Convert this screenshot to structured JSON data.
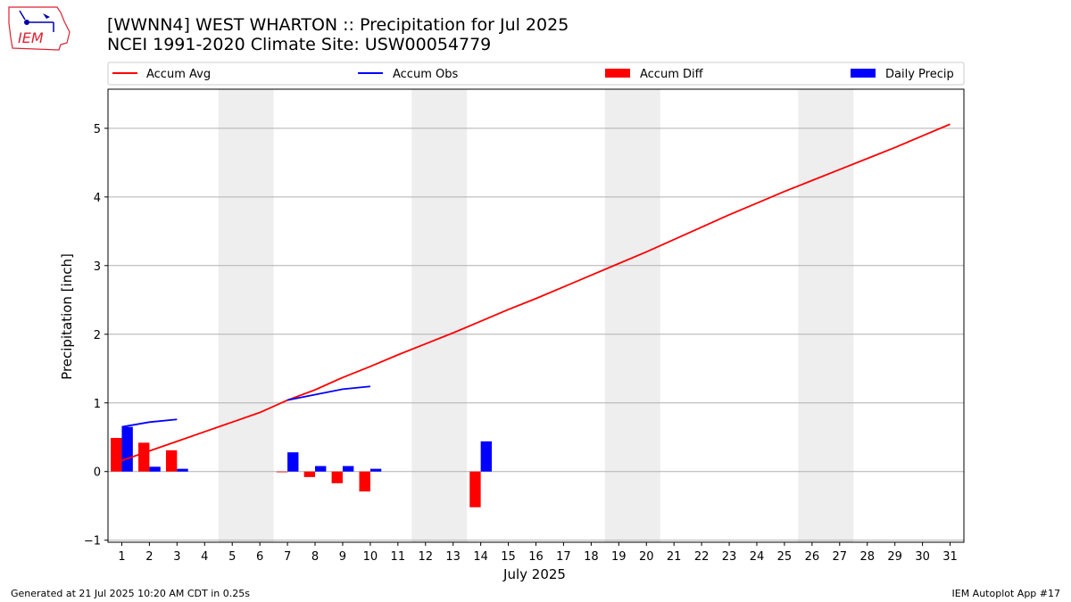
{
  "header": {
    "logo_text": "IEM",
    "title_line1": "[WWNN4] WEST WHARTON :: Precipitation for Jul 2025",
    "title_line2": "NCEI 1991-2020 Climate Site: USW00054779"
  },
  "footer": {
    "generated": "Generated at 21 Jul 2025 10:20 AM CDT in 0.25s",
    "app": "IEM Autoplot App #17"
  },
  "colors": {
    "accum_avg": "#ff0000",
    "accum_obs": "#0000ff",
    "accum_diff": "#ff0000",
    "daily_precip": "#0000ff",
    "weekend_shade": "#eeeeee",
    "grid": "#b0b0b0"
  },
  "chart_data": {
    "type": "bar",
    "title": "",
    "xlabel": "July 2025",
    "ylabel": "Precipitation [inch]",
    "ylim": [
      -1.03,
      5.57
    ],
    "xlim": [
      0.5,
      31.5
    ],
    "grid": "y",
    "legend_position": "top",
    "days": [
      1,
      2,
      3,
      4,
      5,
      6,
      7,
      8,
      9,
      10,
      11,
      12,
      13,
      14,
      15,
      16,
      17,
      18,
      19,
      20,
      21,
      22,
      23,
      24,
      25,
      26,
      27,
      28,
      29,
      30,
      31
    ],
    "x_tick_labels": [
      "1",
      "2",
      "3",
      "4",
      "5",
      "6",
      "7",
      "8",
      "9",
      "10",
      "11",
      "12",
      "13",
      "14",
      "15",
      "16",
      "17",
      "18",
      "19",
      "20",
      "21",
      "22",
      "23",
      "24",
      "25",
      "26",
      "27",
      "28",
      "29",
      "30",
      "31"
    ],
    "y_ticks": [
      -1,
      0,
      1,
      2,
      3,
      4,
      5
    ],
    "y_tick_labels": [
      "−1",
      "0",
      "1",
      "2",
      "3",
      "4",
      "5"
    ],
    "weekend_spans": [
      [
        5,
        6
      ],
      [
        12,
        13
      ],
      [
        19,
        20
      ],
      [
        26,
        27
      ]
    ],
    "legend": [
      "Accum Avg",
      "Accum Obs",
      "Accum Diff",
      "Daily Precip"
    ],
    "series": [
      {
        "name": "Accum Avg",
        "type": "line",
        "x": [
          1,
          2,
          3,
          4,
          5,
          6,
          7,
          8,
          9,
          10,
          11,
          12,
          13,
          14,
          15,
          16,
          17,
          18,
          19,
          20,
          21,
          22,
          23,
          24,
          25,
          26,
          27,
          28,
          29,
          30,
          31
        ],
        "values": [
          0.16,
          0.3,
          0.44,
          0.58,
          0.72,
          0.86,
          1.04,
          1.19,
          1.37,
          1.53,
          1.7,
          1.86,
          2.02,
          2.19,
          2.36,
          2.52,
          2.69,
          2.86,
          3.03,
          3.2,
          3.38,
          3.56,
          3.74,
          3.91,
          4.08,
          4.24,
          4.4,
          4.56,
          4.72,
          4.89,
          5.06
        ]
      },
      {
        "name": "Accum Obs",
        "type": "line",
        "segments": [
          {
            "x": [
              1,
              2,
              3
            ],
            "values": [
              0.65,
              0.72,
              0.76
            ]
          },
          {
            "x": [
              7,
              8,
              9,
              10
            ],
            "values": [
              1.04,
              1.12,
              1.2,
              1.24
            ]
          }
        ]
      },
      {
        "name": "Accum Diff",
        "type": "bar",
        "x": [
          1,
          2,
          3,
          7,
          8,
          9,
          10,
          14
        ],
        "values": [
          0.49,
          0.42,
          0.31,
          -0.01,
          -0.08,
          -0.17,
          -0.29,
          -0.52
        ]
      },
      {
        "name": "Daily Precip",
        "type": "bar",
        "x": [
          1,
          2,
          3,
          7,
          8,
          9,
          10,
          14
        ],
        "values": [
          0.65,
          0.07,
          0.04,
          0.28,
          0.08,
          0.08,
          0.04,
          0.44
        ]
      }
    ]
  }
}
